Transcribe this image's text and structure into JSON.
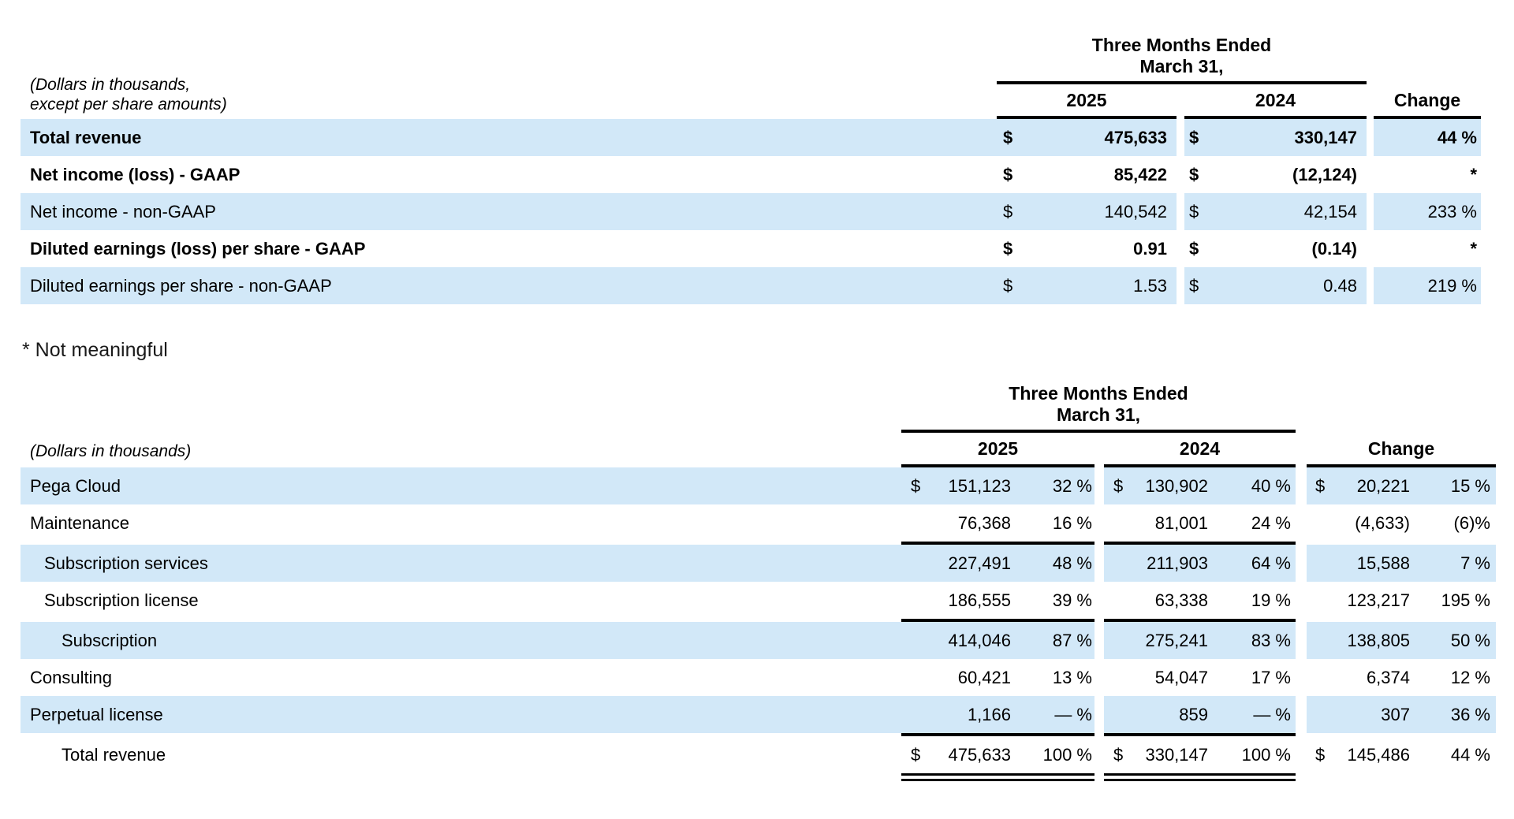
{
  "colors": {
    "band": "#d2e8f8",
    "rule": "#000000",
    "text": "#000000",
    "background": "#ffffff"
  },
  "footnote": "* Not meaningful",
  "table1": {
    "caption_lines": [
      "(Dollars in thousands,",
      "except per share amounts)"
    ],
    "period_header_lines": [
      "Three Months Ended",
      "March 31,"
    ],
    "year_headers": [
      "2025",
      "2024"
    ],
    "change_header": "Change",
    "rows": [
      {
        "label": "Total revenue",
        "bold": true,
        "shaded": true,
        "cur25": "$",
        "val25": "475,633",
        "cur24": "$",
        "val24": "330,147",
        "change": "44 %"
      },
      {
        "label": "Net income (loss) - GAAP",
        "bold": true,
        "shaded": false,
        "cur25": "$",
        "val25": "85,422",
        "cur24": "$",
        "val24": "(12,124)",
        "change": "*"
      },
      {
        "label": "Net income - non-GAAP",
        "bold": false,
        "shaded": true,
        "cur25": "$",
        "val25": "140,542",
        "cur24": "$",
        "val24": "42,154",
        "change": "233 %"
      },
      {
        "label": "Diluted earnings (loss) per share - GAAP",
        "bold": true,
        "shaded": false,
        "cur25": "$",
        "val25": "0.91",
        "cur24": "$",
        "val24": "(0.14)",
        "change": "*"
      },
      {
        "label": "Diluted earnings per share - non-GAAP",
        "bold": false,
        "shaded": true,
        "cur25": "$",
        "val25": "1.53",
        "cur24": "$",
        "val24": "0.48",
        "change": "219 %"
      }
    ]
  },
  "table2": {
    "caption": "(Dollars in thousands)",
    "period_header_lines": [
      "Three Months Ended",
      "March 31,"
    ],
    "year_headers": [
      "2025",
      "2024"
    ],
    "change_header": "Change",
    "rows": [
      {
        "label": "Pega Cloud",
        "indent": 0,
        "shaded": true,
        "rule_below": false,
        "cur25": "$",
        "val25": "151,123",
        "pct25": "32 %",
        "cur24": "$",
        "val24": "130,902",
        "pct24": "40 %",
        "curChg": "$",
        "valChg": "20,221",
        "pctChg": "15 %"
      },
      {
        "label": "Maintenance",
        "indent": 0,
        "shaded": false,
        "rule_below": true,
        "val25": "76,368",
        "pct25": "16 %",
        "val24": "81,001",
        "pct24": "24 %",
        "valChg": "(4,633)",
        "pctChg": "(6)%"
      },
      {
        "label": "Subscription services",
        "indent": 1,
        "shaded": true,
        "rule_below": false,
        "val25": "227,491",
        "pct25": "48 %",
        "val24": "211,903",
        "pct24": "64 %",
        "valChg": "15,588",
        "pctChg": "7 %"
      },
      {
        "label": "Subscription license",
        "indent": 1,
        "shaded": false,
        "rule_below": true,
        "val25": "186,555",
        "pct25": "39 %",
        "val24": "63,338",
        "pct24": "19 %",
        "valChg": "123,217",
        "pctChg": "195 %"
      },
      {
        "label": "Subscription",
        "indent": 2,
        "shaded": true,
        "rule_below": false,
        "val25": "414,046",
        "pct25": "87 %",
        "val24": "275,241",
        "pct24": "83 %",
        "valChg": "138,805",
        "pctChg": "50 %"
      },
      {
        "label": "Consulting",
        "indent": 0,
        "shaded": false,
        "rule_below": false,
        "val25": "60,421",
        "pct25": "13 %",
        "val24": "54,047",
        "pct24": "17 %",
        "valChg": "6,374",
        "pctChg": "12 %"
      },
      {
        "label": "Perpetual license",
        "indent": 0,
        "shaded": true,
        "rule_below": true,
        "val25": "1,166",
        "pct25": "— %",
        "val24": "859",
        "pct24": "— %",
        "valChg": "307",
        "pctChg": "36 %"
      },
      {
        "label": "Total revenue",
        "indent": 2,
        "shaded": false,
        "double_rule_below": true,
        "cur25": "$",
        "val25": "475,633",
        "pct25": "100 %",
        "cur24": "$",
        "val24": "330,147",
        "pct24": "100 %",
        "curChg": "$",
        "valChg": "145,486",
        "pctChg": "44 %"
      }
    ]
  }
}
